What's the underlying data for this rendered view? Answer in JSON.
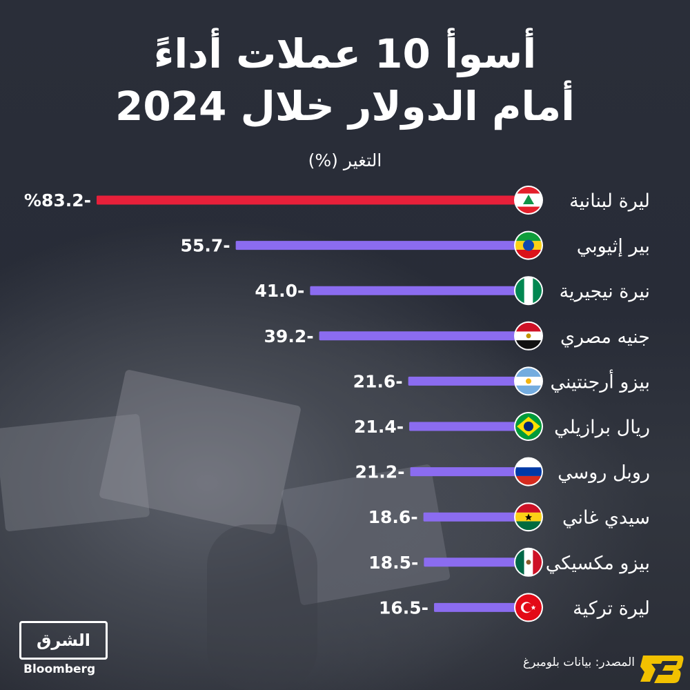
{
  "title_line1": "أسوأ 10 عملات أداءً",
  "title_line2": "أمام الدولار خلال 2024",
  "unit_label": "التغير (%)",
  "source": "المصدر: بيانات بلومبرغ",
  "logo": {
    "name": "الشرق",
    "sub": "Bloomberg"
  },
  "colors": {
    "highlight": "#e8203a",
    "bar": "#8b6cf0",
    "text": "#ffffff"
  },
  "chart_data": {
    "type": "bar",
    "orientation": "horizontal",
    "categories": [
      "ليرة لبنانية",
      "بير إثيوبي",
      "نيرة نيجيرية",
      "جنيه مصري",
      "بيزو أرجنتيني",
      "ريال برازيلي",
      "روبل روسي",
      "سيدي غاني",
      "بيزو مكسيكي",
      "ليرة تركية"
    ],
    "values": [
      -83.2,
      -55.7,
      -41.0,
      -39.2,
      -21.6,
      -21.4,
      -21.2,
      -18.6,
      -18.5,
      -16.5
    ],
    "value_labels": [
      "%83.2-",
      "55.7-",
      "41.0-",
      "39.2-",
      "21.6-",
      "21.4-",
      "21.2-",
      "18.6-",
      "18.5-",
      "16.5-"
    ],
    "flags": [
      "lebanon-flag-icon",
      "ethiopia-flag-icon",
      "nigeria-flag-icon",
      "egypt-flag-icon",
      "argentina-flag-icon",
      "brazil-flag-icon",
      "russia-flag-icon",
      "ghana-flag-icon",
      "mexico-flag-icon",
      "turkey-flag-icon"
    ],
    "highlight_index": 0,
    "grid": false,
    "legend": "none"
  }
}
